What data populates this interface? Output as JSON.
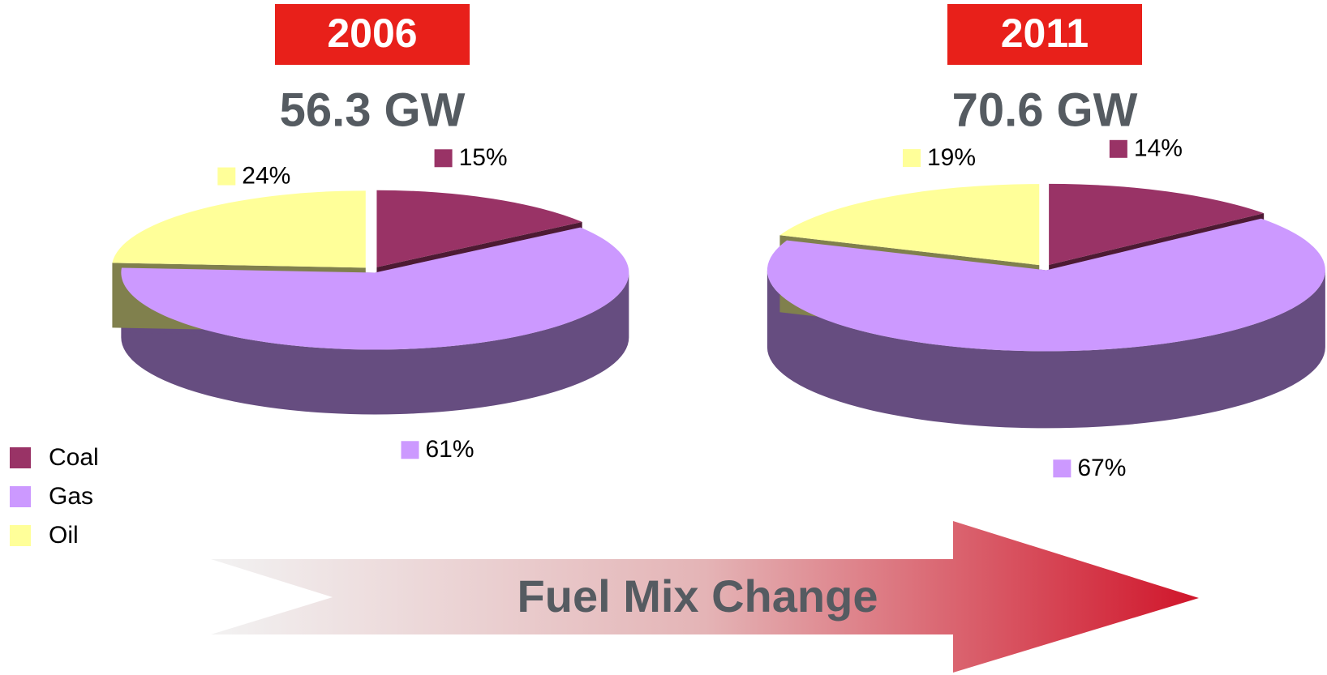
{
  "chart_data": [
    {
      "type": "pie",
      "title": "2006",
      "subtitle": "56.3 GW",
      "categories": [
        "Coal",
        "Gas",
        "Oil"
      ],
      "values": [
        15,
        61,
        24
      ],
      "value_labels": [
        "15%",
        "61%",
        "24%"
      ],
      "colors": [
        "#993366",
        "#cc99ff",
        "#ffff99"
      ],
      "legend": "bottom-left"
    },
    {
      "type": "pie",
      "title": "2011",
      "subtitle": "70.6 GW",
      "categories": [
        "Coal",
        "Gas",
        "Oil"
      ],
      "values": [
        14,
        67,
        19
      ],
      "value_labels": [
        "14%",
        "67%",
        "19%"
      ],
      "colors": [
        "#993366",
        "#cc99ff",
        "#ffff99"
      ]
    }
  ],
  "footer": {
    "text": "Fuel Mix Change"
  }
}
